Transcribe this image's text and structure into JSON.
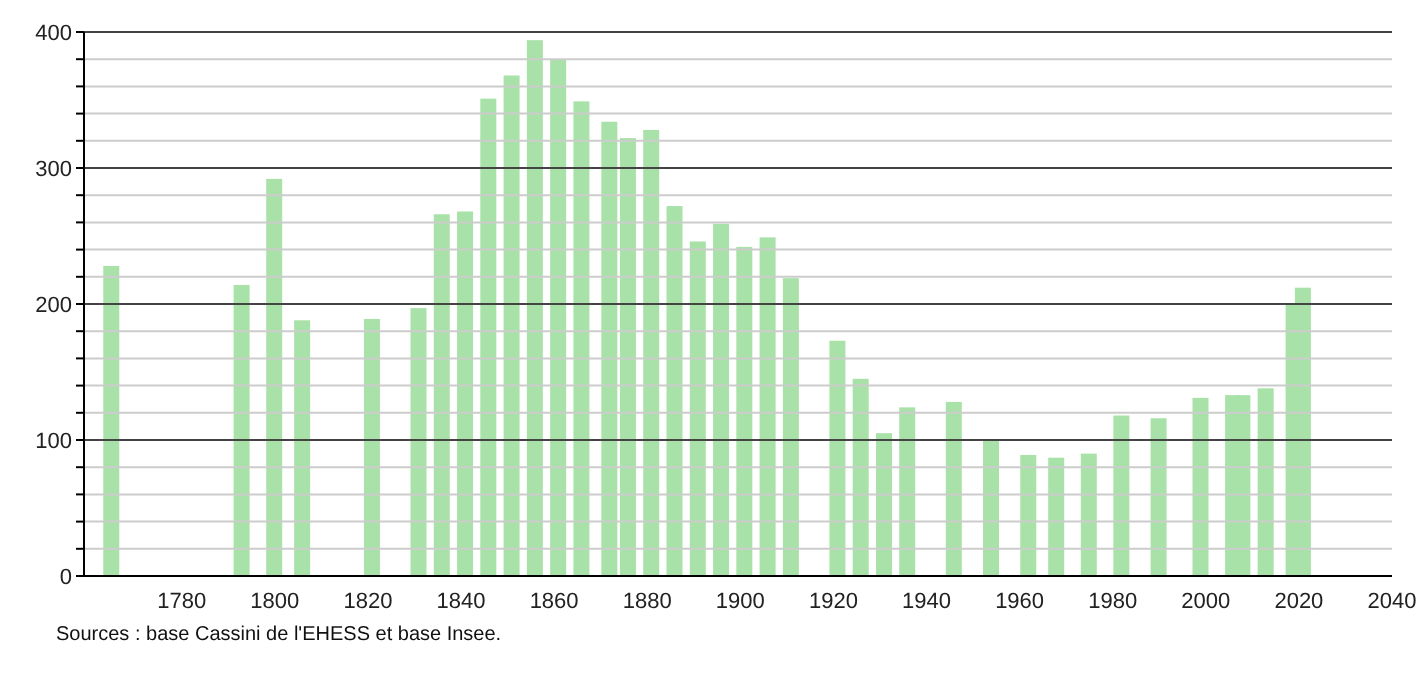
{
  "chart_data": {
    "type": "bar",
    "x": [
      1765,
      1793,
      1800,
      1806,
      1821,
      1831,
      1836,
      1841,
      1846,
      1851,
      1856,
      1861,
      1866,
      1872,
      1876,
      1881,
      1886,
      1891,
      1896,
      1901,
      1906,
      1911,
      1921,
      1926,
      1931,
      1936,
      1946,
      1954,
      1962,
      1968,
      1975,
      1982,
      1990,
      1999,
      2006,
      2008,
      2013,
      2019,
      2021
    ],
    "values": [
      228,
      214,
      292,
      188,
      189,
      197,
      266,
      268,
      351,
      368,
      394,
      380,
      349,
      334,
      322,
      328,
      272,
      246,
      259,
      242,
      249,
      219,
      173,
      145,
      105,
      124,
      128,
      100,
      89,
      87,
      90,
      118,
      116,
      131,
      133,
      133,
      138,
      200,
      212
    ],
    "color": "#a8e2a8",
    "xlim": [
      1759,
      2040
    ],
    "xticks": [
      1780,
      1800,
      1820,
      1840,
      1860,
      1880,
      1900,
      1920,
      1940,
      1960,
      1980,
      2000,
      2020,
      2040
    ],
    "ylim": [
      0,
      400
    ],
    "yticks": [
      0,
      {
        "value": 20,
        "label": null
      },
      {
        "value": 40,
        "label": null
      },
      {
        "value": 60,
        "label": null
      },
      {
        "value": 80,
        "label": null
      },
      100,
      {
        "value": 120,
        "label": null
      },
      {
        "value": 140,
        "label": null
      },
      {
        "value": 160,
        "label": null
      },
      {
        "value": 180,
        "label": null
      },
      200,
      {
        "value": 220,
        "label": null
      },
      {
        "value": 240,
        "label": null
      },
      {
        "value": 260,
        "label": null
      },
      {
        "value": 280,
        "label": null
      },
      300,
      {
        "value": 320,
        "label": null
      },
      {
        "value": 340,
        "label": null
      },
      {
        "value": 360,
        "label": null
      },
      {
        "value": 380,
        "label": null
      },
      400
    ],
    "grid": "y",
    "annotations": [
      "Sources : base Cassini de l'EHESS et base Insee."
    ]
  }
}
